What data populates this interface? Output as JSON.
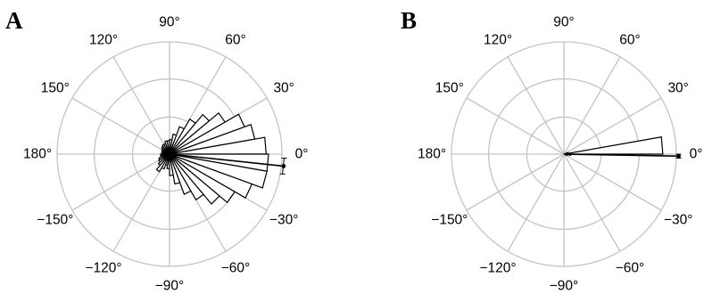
{
  "chart_data": [
    {
      "panel": "A",
      "type": "polar-rose",
      "angle_labels": [
        "90°",
        "60°",
        "30°",
        "0°",
        "−30°",
        "−60°",
        "−90°",
        "−120°",
        "−150°",
        "180°",
        "150°",
        "120°"
      ],
      "angle_label_degrees": [
        90,
        60,
        30,
        0,
        -30,
        -60,
        -90,
        -120,
        -150,
        180,
        150,
        120
      ],
      "r_max": 1.0,
      "rings": [
        0.33,
        0.67,
        1.0
      ],
      "bin_width_deg": 10,
      "bins": [
        {
          "center": 85,
          "value": 0.13
        },
        {
          "center": 75,
          "value": 0.18
        },
        {
          "center": 65,
          "value": 0.26
        },
        {
          "center": 55,
          "value": 0.36
        },
        {
          "center": 45,
          "value": 0.46
        },
        {
          "center": 35,
          "value": 0.57
        },
        {
          "center": 25,
          "value": 0.71
        },
        {
          "center": 15,
          "value": 0.77
        },
        {
          "center": 5,
          "value": 0.86
        },
        {
          "center": -5,
          "value": 0.88
        },
        {
          "center": -15,
          "value": 0.88
        },
        {
          "center": -25,
          "value": 0.78
        },
        {
          "center": -35,
          "value": 0.67
        },
        {
          "center": -45,
          "value": 0.58
        },
        {
          "center": -55,
          "value": 0.47
        },
        {
          "center": -65,
          "value": 0.38
        },
        {
          "center": -75,
          "value": 0.27
        },
        {
          "center": -85,
          "value": 0.19
        },
        {
          "center": -95,
          "value": 0.13
        },
        {
          "center": -105,
          "value": 0.1
        },
        {
          "center": -115,
          "value": 0.14
        },
        {
          "center": -125,
          "value": 0.18
        },
        {
          "center": -135,
          "value": 0.13
        },
        {
          "center": -145,
          "value": 0.11
        },
        {
          "center": -155,
          "value": 0.1
        },
        {
          "center": -165,
          "value": 0.08
        },
        {
          "center": -175,
          "value": 0.08
        },
        {
          "center": 175,
          "value": 0.07
        },
        {
          "center": 165,
          "value": 0.07
        },
        {
          "center": 155,
          "value": 0.07
        },
        {
          "center": 145,
          "value": 0.08
        },
        {
          "center": 135,
          "value": 0.09
        },
        {
          "center": 125,
          "value": 0.1
        },
        {
          "center": 115,
          "value": 0.1
        },
        {
          "center": 105,
          "value": 0.12
        },
        {
          "center": 95,
          "value": 0.12
        }
      ],
      "mean_direction_deg": -6,
      "mean_direction_ci_deg": [
        -10,
        -2
      ]
    },
    {
      "panel": "B",
      "type": "polar-rose",
      "angle_labels": [
        "90°",
        "60°",
        "30°",
        "0°",
        "−30°",
        "−60°",
        "−90°",
        "−120°",
        "−150°",
        "180°",
        "150°",
        "120°"
      ],
      "angle_label_degrees": [
        90,
        60,
        30,
        0,
        -30,
        -60,
        -90,
        -120,
        -150,
        180,
        150,
        120
      ],
      "r_max": 1.0,
      "rings": [
        0.33,
        0.67,
        1.0
      ],
      "bin_width_deg": 10,
      "bins": [
        {
          "center": 5,
          "value": 0.88
        },
        {
          "center": -5,
          "value": 0.06
        },
        {
          "center": 15,
          "value": 0.04
        },
        {
          "center": -15,
          "value": 0.03
        }
      ],
      "mean_direction_deg": -1,
      "mean_direction_ci_deg": [
        -2,
        0
      ]
    }
  ]
}
